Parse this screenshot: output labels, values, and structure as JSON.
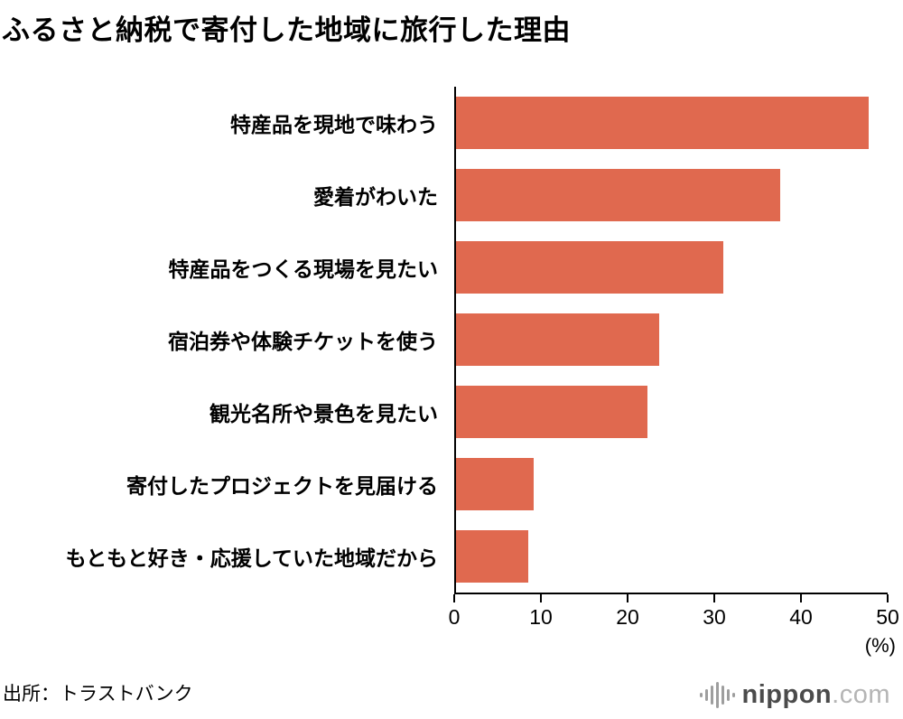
{
  "title": "ふるさと納税で寄付した地域に旅行した理由",
  "source": "出所：トラストバンク",
  "logo": {
    "name": "nippon",
    "domain": ".com"
  },
  "colors": {
    "bar": "#e0694f",
    "axis": "#000000"
  },
  "chart_data": {
    "type": "bar",
    "orientation": "horizontal",
    "title": "ふるさと納税で寄付した地域に旅行した理由",
    "categories": [
      "特産品を現地で味わう",
      "愛着がわいた",
      "特産品をつくる現場を見たい",
      "宿泊券や体験チケットを使う",
      "観光名所や景色を見たい",
      "寄付したプロジェクトを見届ける",
      "もともと好き・応援していた地域だから"
    ],
    "values": [
      47.8,
      37.5,
      31.0,
      23.5,
      22.2,
      9.0,
      8.4
    ],
    "xlim": [
      0,
      50
    ],
    "xticks": [
      0,
      10,
      20,
      30,
      40,
      50
    ],
    "xlabel": "(%)",
    "grid": false,
    "legend": false
  }
}
